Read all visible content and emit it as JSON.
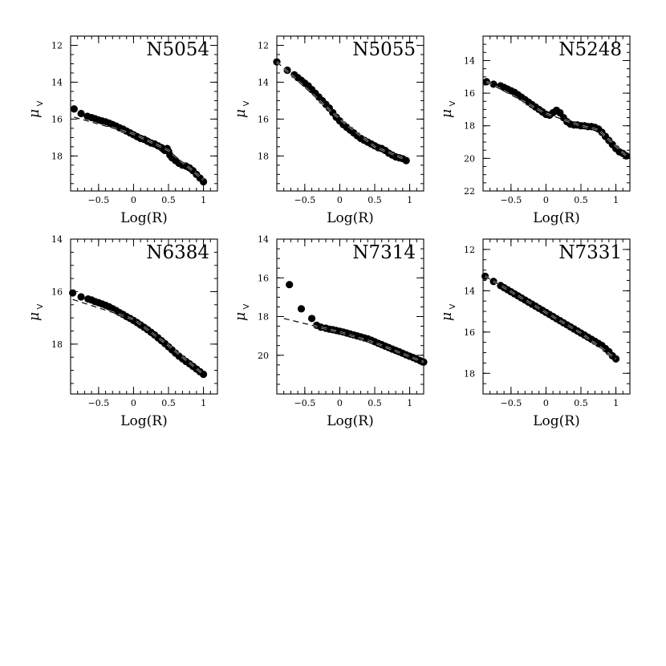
{
  "chart_data": [
    {
      "type": "scatter",
      "title": "N5054",
      "xlabel": "Log(R)",
      "ylabel_symbol": "μ",
      "ylabel_sub": "V",
      "xlim": [
        -0.9,
        1.2
      ],
      "ylim": [
        19.9,
        11.5
      ],
      "xticks": [
        -0.5,
        0,
        0.5,
        1
      ],
      "xtick_labels": [
        "−0.5",
        "0",
        "0.5",
        "1"
      ],
      "yticks": [
        12,
        14,
        16,
        18
      ],
      "ytick_labels": [
        "12",
        "14",
        "16",
        "18"
      ],
      "points": [
        [
          -0.85,
          15.45
        ],
        [
          -0.75,
          15.7
        ],
        [
          -0.66,
          15.85
        ],
        [
          -0.6,
          15.92
        ],
        [
          -0.55,
          15.98
        ],
        [
          -0.5,
          16.05
        ],
        [
          -0.45,
          16.1
        ],
        [
          -0.4,
          16.15
        ],
        [
          -0.35,
          16.22
        ],
        [
          -0.3,
          16.3
        ],
        [
          -0.25,
          16.38
        ],
        [
          -0.2,
          16.47
        ],
        [
          -0.15,
          16.55
        ],
        [
          -0.1,
          16.65
        ],
        [
          -0.05,
          16.75
        ],
        [
          0.0,
          16.85
        ],
        [
          0.05,
          16.95
        ],
        [
          0.1,
          17.05
        ],
        [
          0.15,
          17.1
        ],
        [
          0.2,
          17.2
        ],
        [
          0.25,
          17.3
        ],
        [
          0.3,
          17.35
        ],
        [
          0.35,
          17.45
        ],
        [
          0.4,
          17.55
        ],
        [
          0.43,
          17.65
        ],
        [
          0.45,
          17.7
        ],
        [
          0.48,
          17.6
        ],
        [
          0.5,
          17.75
        ],
        [
          0.52,
          17.95
        ],
        [
          0.55,
          18.1
        ],
        [
          0.6,
          18.25
        ],
        [
          0.65,
          18.4
        ],
        [
          0.7,
          18.5
        ],
        [
          0.75,
          18.55
        ],
        [
          0.8,
          18.65
        ],
        [
          0.85,
          18.8
        ],
        [
          0.9,
          19.0
        ],
        [
          0.95,
          19.2
        ],
        [
          1.0,
          19.4
        ]
      ],
      "fit": [
        [
          -0.85,
          15.9
        ],
        [
          0.0,
          16.8
        ],
        [
          0.5,
          17.7
        ],
        [
          1.0,
          19.3
        ]
      ]
    },
    {
      "type": "scatter",
      "title": "N5055",
      "xlabel": "Log(R)",
      "ylabel_symbol": "μ",
      "ylabel_sub": "V",
      "xlim": [
        -0.9,
        1.2
      ],
      "ylim": [
        19.9,
        11.5
      ],
      "xticks": [
        -0.5,
        0,
        0.5,
        1
      ],
      "xtick_labels": [
        "−0.5",
        "0",
        "0.5",
        "1"
      ],
      "yticks": [
        12,
        14,
        16,
        18
      ],
      "ytick_labels": [
        "12",
        "14",
        "16",
        "18"
      ],
      "points": [
        [
          -0.9,
          12.9
        ],
        [
          -0.75,
          13.35
        ],
        [
          -0.65,
          13.6
        ],
        [
          -0.6,
          13.75
        ],
        [
          -0.55,
          13.9
        ],
        [
          -0.5,
          14.05
        ],
        [
          -0.45,
          14.2
        ],
        [
          -0.4,
          14.4
        ],
        [
          -0.35,
          14.6
        ],
        [
          -0.3,
          14.8
        ],
        [
          -0.25,
          15.0
        ],
        [
          -0.2,
          15.2
        ],
        [
          -0.15,
          15.4
        ],
        [
          -0.1,
          15.65
        ],
        [
          -0.05,
          15.9
        ],
        [
          0.0,
          16.1
        ],
        [
          0.05,
          16.3
        ],
        [
          0.1,
          16.45
        ],
        [
          0.15,
          16.6
        ],
        [
          0.2,
          16.75
        ],
        [
          0.25,
          16.9
        ],
        [
          0.3,
          17.05
        ],
        [
          0.35,
          17.15
        ],
        [
          0.4,
          17.25
        ],
        [
          0.45,
          17.35
        ],
        [
          0.5,
          17.45
        ],
        [
          0.55,
          17.55
        ],
        [
          0.6,
          17.6
        ],
        [
          0.65,
          17.7
        ],
        [
          0.7,
          17.85
        ],
        [
          0.75,
          17.95
        ],
        [
          0.8,
          18.05
        ],
        [
          0.85,
          18.1
        ],
        [
          0.9,
          18.15
        ],
        [
          0.95,
          18.25
        ]
      ],
      "fit": [
        [
          -0.9,
          12.9
        ],
        [
          0.0,
          16.0
        ],
        [
          0.5,
          17.5
        ],
        [
          0.95,
          18.2
        ]
      ]
    },
    {
      "type": "scatter",
      "title": "N5248",
      "xlabel": "Log(R)",
      "ylabel_symbol": "μ",
      "ylabel_sub": "V",
      "xlim": [
        -0.9,
        1.2
      ],
      "ylim": [
        22.0,
        12.5
      ],
      "xticks": [
        -0.5,
        0,
        0.5,
        1
      ],
      "xtick_labels": [
        "−0.5",
        "0",
        "0.5",
        "1"
      ],
      "yticks": [
        14,
        16,
        18,
        20,
        22
      ],
      "ytick_labels": [
        "14",
        "16",
        "18",
        "20",
        "22"
      ],
      "points": [
        [
          -0.85,
          15.3
        ],
        [
          -0.75,
          15.45
        ],
        [
          -0.65,
          15.55
        ],
        [
          -0.6,
          15.65
        ],
        [
          -0.55,
          15.75
        ],
        [
          -0.5,
          15.85
        ],
        [
          -0.45,
          15.95
        ],
        [
          -0.4,
          16.1
        ],
        [
          -0.35,
          16.25
        ],
        [
          -0.3,
          16.4
        ],
        [
          -0.25,
          16.55
        ],
        [
          -0.2,
          16.7
        ],
        [
          -0.15,
          16.85
        ],
        [
          -0.1,
          17.0
        ],
        [
          -0.05,
          17.15
        ],
        [
          0.0,
          17.3
        ],
        [
          0.05,
          17.35
        ],
        [
          0.1,
          17.2
        ],
        [
          0.15,
          17.05
        ],
        [
          0.2,
          17.2
        ],
        [
          0.25,
          17.5
        ],
        [
          0.3,
          17.75
        ],
        [
          0.35,
          17.9
        ],
        [
          0.4,
          17.95
        ],
        [
          0.45,
          17.95
        ],
        [
          0.5,
          18.0
        ],
        [
          0.55,
          18.0
        ],
        [
          0.6,
          18.05
        ],
        [
          0.65,
          18.05
        ],
        [
          0.7,
          18.1
        ],
        [
          0.75,
          18.2
        ],
        [
          0.8,
          18.4
        ],
        [
          0.85,
          18.65
        ],
        [
          0.9,
          18.9
        ],
        [
          0.95,
          19.15
        ],
        [
          1.0,
          19.4
        ],
        [
          1.05,
          19.6
        ],
        [
          1.1,
          19.7
        ],
        [
          1.15,
          19.85
        ]
      ],
      "fit": [
        [
          -0.85,
          15.3
        ],
        [
          0.0,
          17.25
        ],
        [
          0.5,
          18.0
        ],
        [
          0.75,
          18.25
        ],
        [
          1.15,
          19.85
        ]
      ]
    },
    {
      "type": "scatter",
      "title": "N6384",
      "xlabel": "Log(R)",
      "ylabel_symbol": "μ",
      "ylabel_sub": "V",
      "xlim": [
        -0.9,
        1.2
      ],
      "ylim": [
        19.9,
        14.0
      ],
      "xticks": [
        -0.5,
        0,
        0.5,
        1
      ],
      "xtick_labels": [
        "−0.5",
        "0",
        "0.5",
        "1"
      ],
      "yticks": [
        14,
        16,
        18
      ],
      "ytick_labels": [
        "14",
        "16",
        "18"
      ],
      "points": [
        [
          -0.87,
          16.05
        ],
        [
          -0.75,
          16.2
        ],
        [
          -0.65,
          16.28
        ],
        [
          -0.6,
          16.32
        ],
        [
          -0.55,
          16.38
        ],
        [
          -0.5,
          16.42
        ],
        [
          -0.45,
          16.47
        ],
        [
          -0.4,
          16.52
        ],
        [
          -0.35,
          16.58
        ],
        [
          -0.3,
          16.65
        ],
        [
          -0.25,
          16.72
        ],
        [
          -0.2,
          16.8
        ],
        [
          -0.15,
          16.87
        ],
        [
          -0.1,
          16.95
        ],
        [
          -0.05,
          17.02
        ],
        [
          0.0,
          17.1
        ],
        [
          0.05,
          17.18
        ],
        [
          0.1,
          17.27
        ],
        [
          0.15,
          17.36
        ],
        [
          0.2,
          17.45
        ],
        [
          0.25,
          17.55
        ],
        [
          0.3,
          17.65
        ],
        [
          0.35,
          17.76
        ],
        [
          0.4,
          17.87
        ],
        [
          0.45,
          17.98
        ],
        [
          0.5,
          18.1
        ],
        [
          0.55,
          18.22
        ],
        [
          0.6,
          18.34
        ],
        [
          0.65,
          18.46
        ],
        [
          0.7,
          18.56
        ],
        [
          0.75,
          18.66
        ],
        [
          0.8,
          18.75
        ],
        [
          0.85,
          18.85
        ],
        [
          0.9,
          18.95
        ],
        [
          0.95,
          19.05
        ],
        [
          1.0,
          19.15
        ]
      ],
      "fit": [
        [
          -0.87,
          16.3
        ],
        [
          0.0,
          17.05
        ],
        [
          0.5,
          18.05
        ],
        [
          1.0,
          19.15
        ]
      ]
    },
    {
      "type": "scatter",
      "title": "N7314",
      "xlabel": "Log(R)",
      "ylabel_symbol": "μ",
      "ylabel_sub": "V",
      "xlim": [
        -0.9,
        1.2
      ],
      "ylim": [
        22.0,
        14.0
      ],
      "xticks": [
        -0.5,
        0,
        0.5,
        1
      ],
      "xtick_labels": [
        "−0.5",
        "0",
        "0.5",
        "1"
      ],
      "yticks": [
        14,
        16,
        18,
        20
      ],
      "ytick_labels": [
        "14",
        "16",
        "18",
        "20"
      ],
      "points": [
        [
          -0.72,
          16.35
        ],
        [
          -0.55,
          17.6
        ],
        [
          -0.4,
          18.1
        ],
        [
          -0.33,
          18.45
        ],
        [
          -0.27,
          18.55
        ],
        [
          -0.2,
          18.6
        ],
        [
          -0.15,
          18.65
        ],
        [
          -0.1,
          18.68
        ],
        [
          -0.05,
          18.72
        ],
        [
          0.0,
          18.76
        ],
        [
          0.05,
          18.8
        ],
        [
          0.1,
          18.85
        ],
        [
          0.15,
          18.9
        ],
        [
          0.2,
          18.95
        ],
        [
          0.25,
          19.0
        ],
        [
          0.3,
          19.05
        ],
        [
          0.35,
          19.1
        ],
        [
          0.4,
          19.15
        ],
        [
          0.45,
          19.22
        ],
        [
          0.5,
          19.3
        ],
        [
          0.55,
          19.38
        ],
        [
          0.6,
          19.45
        ],
        [
          0.65,
          19.53
        ],
        [
          0.7,
          19.6
        ],
        [
          0.75,
          19.68
        ],
        [
          0.8,
          19.75
        ],
        [
          0.85,
          19.82
        ],
        [
          0.9,
          19.9
        ],
        [
          0.95,
          19.98
        ],
        [
          1.0,
          20.05
        ],
        [
          1.05,
          20.12
        ],
        [
          1.1,
          20.2
        ],
        [
          1.15,
          20.28
        ],
        [
          1.2,
          20.35
        ]
      ],
      "fit": [
        [
          -0.8,
          18.1
        ],
        [
          0.0,
          18.8
        ],
        [
          0.5,
          19.35
        ],
        [
          1.2,
          20.35
        ]
      ]
    },
    {
      "type": "scatter",
      "title": "N7331",
      "xlabel": "Log(R)",
      "ylabel_symbol": "μ",
      "ylabel_sub": "V",
      "xlim": [
        -0.9,
        1.2
      ],
      "ylim": [
        19.0,
        11.5
      ],
      "xticks": [
        -0.5,
        0,
        0.5,
        1
      ],
      "xtick_labels": [
        "−0.5",
        "0",
        "0.5",
        "1"
      ],
      "yticks": [
        12,
        14,
        16,
        18
      ],
      "ytick_labels": [
        "12",
        "14",
        "16",
        "18"
      ],
      "points": [
        [
          -0.87,
          13.3
        ],
        [
          -0.75,
          13.55
        ],
        [
          -0.65,
          13.75
        ],
        [
          -0.6,
          13.85
        ],
        [
          -0.55,
          13.95
        ],
        [
          -0.5,
          14.05
        ],
        [
          -0.45,
          14.15
        ],
        [
          -0.4,
          14.25
        ],
        [
          -0.35,
          14.35
        ],
        [
          -0.3,
          14.45
        ],
        [
          -0.25,
          14.55
        ],
        [
          -0.2,
          14.65
        ],
        [
          -0.15,
          14.75
        ],
        [
          -0.1,
          14.85
        ],
        [
          -0.05,
          14.95
        ],
        [
          0.0,
          15.05
        ],
        [
          0.05,
          15.15
        ],
        [
          0.1,
          15.25
        ],
        [
          0.15,
          15.35
        ],
        [
          0.2,
          15.45
        ],
        [
          0.25,
          15.55
        ],
        [
          0.3,
          15.65
        ],
        [
          0.35,
          15.75
        ],
        [
          0.4,
          15.85
        ],
        [
          0.45,
          15.95
        ],
        [
          0.5,
          16.05
        ],
        [
          0.55,
          16.15
        ],
        [
          0.6,
          16.25
        ],
        [
          0.65,
          16.35
        ],
        [
          0.7,
          16.45
        ],
        [
          0.75,
          16.55
        ],
        [
          0.8,
          16.65
        ],
        [
          0.85,
          16.8
        ],
        [
          0.9,
          16.95
        ],
        [
          0.95,
          17.15
        ],
        [
          1.0,
          17.3
        ]
      ],
      "fit": [
        [
          -0.87,
          13.3
        ],
        [
          0.0,
          15.05
        ],
        [
          0.5,
          16.05
        ],
        [
          1.0,
          17.3
        ]
      ]
    }
  ]
}
